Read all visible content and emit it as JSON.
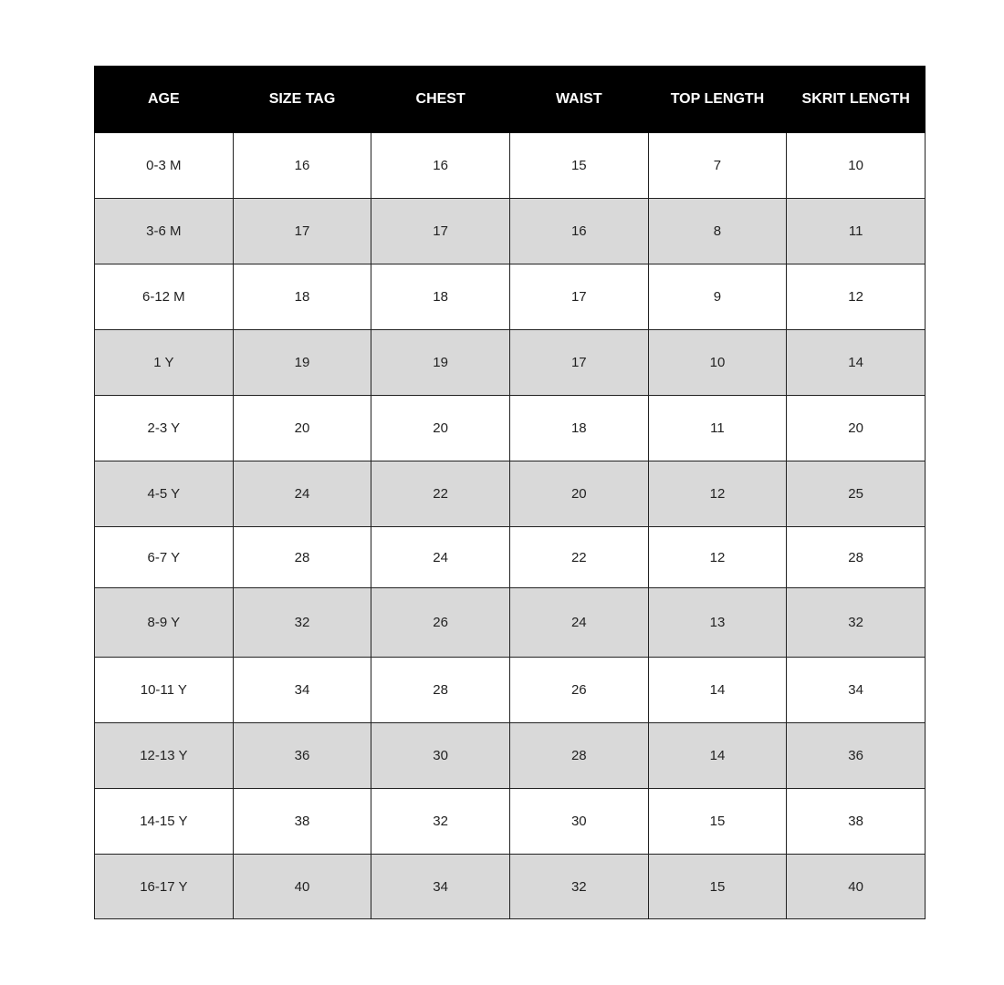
{
  "table": {
    "headers": [
      "AGE",
      "SIZE TAG",
      "CHEST",
      "WAIST",
      "TOP LENGTH",
      "SKRIT LENGTH"
    ],
    "rows": [
      [
        "0-3 M",
        "16",
        "16",
        "15",
        "7",
        "10"
      ],
      [
        "3-6 M",
        "17",
        "17",
        "16",
        "8",
        "11"
      ],
      [
        "6-12 M",
        "18",
        "18",
        "17",
        "9",
        "12"
      ],
      [
        "1 Y",
        "19",
        "19",
        "17",
        "10",
        "14"
      ],
      [
        "2-3 Y",
        "20",
        "20",
        "18",
        "11",
        "20"
      ],
      [
        "4-5 Y",
        "24",
        "22",
        "20",
        "12",
        "25"
      ],
      [
        "6-7 Y",
        "28",
        "24",
        "22",
        "12",
        "28"
      ],
      [
        "8-9 Y",
        "32",
        "26",
        "24",
        "13",
        "32"
      ],
      [
        "10-11 Y",
        "34",
        "28",
        "26",
        "14",
        "34"
      ],
      [
        "12-13 Y",
        "36",
        "30",
        "28",
        "14",
        "36"
      ],
      [
        "14-15 Y",
        "38",
        "32",
        "30",
        "15",
        "38"
      ],
      [
        "16-17 Y",
        "40",
        "34",
        "32",
        "15",
        "40"
      ]
    ],
    "header_bg": "#000000",
    "alt_row_bg": "#d9d9d9"
  }
}
